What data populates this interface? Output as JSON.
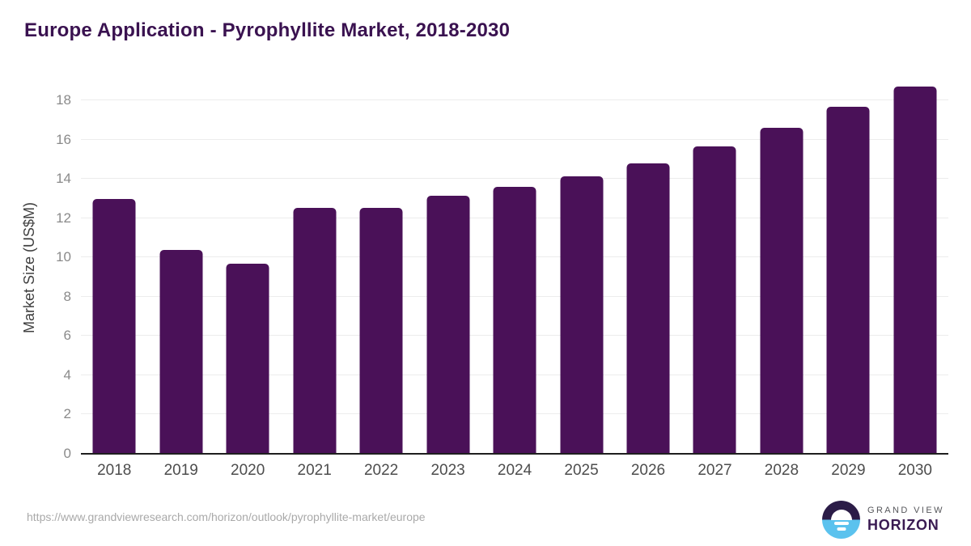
{
  "title": "Europe Application - Pyrophyllite Market, 2018-2030",
  "chart_data": {
    "type": "bar",
    "title": "Europe Application - Pyrophyllite Market, 2018-2030",
    "categories": [
      "2018",
      "2019",
      "2020",
      "2021",
      "2022",
      "2023",
      "2024",
      "2025",
      "2026",
      "2027",
      "2028",
      "2029",
      "2030"
    ],
    "values": [
      13.0,
      10.4,
      9.7,
      12.55,
      12.55,
      13.15,
      13.6,
      14.15,
      14.8,
      15.65,
      16.6,
      17.7,
      18.7
    ],
    "xlabel": "",
    "ylabel": "Market Size (US$M)",
    "ylim": [
      0,
      19
    ],
    "ytick_step": 2,
    "yticks": [
      0,
      2,
      4,
      6,
      8,
      10,
      12,
      14,
      16,
      18
    ],
    "grid": true,
    "legend": "none",
    "bar_color": "#4a1158"
  },
  "footer": {
    "source_url": "https://www.grandviewresearch.com/horizon/outlook/pyrophyllite-market/europe",
    "logo": {
      "line1": "GRAND VIEW",
      "line2": "HORIZON"
    }
  },
  "colors": {
    "title": "#3a1250",
    "bar": "#4a1158",
    "grid": "#ececec",
    "axis_line": "#1f1f1f",
    "tick_label": "#8a8a8a",
    "x_label": "#4d4d4d",
    "y_axis_title": "#3f3f3f",
    "url": "#a9a9a9",
    "logo_dark": "#2b1c47",
    "logo_blue": "#5bc2ee",
    "logo_gray": "#55565a",
    "logo_purple": "#3a1b52"
  }
}
